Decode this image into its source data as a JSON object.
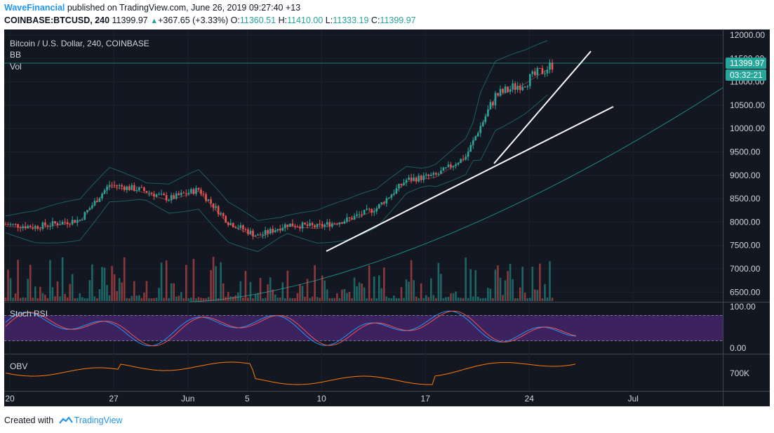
{
  "header": {
    "publisher": "WaveFinancial",
    "published_text": "published on TradingView.com, June 26, 2019 09:27:40 +13",
    "symbol": "COINBASE:BTCUSD, 240",
    "last": "11399.97",
    "change": "+367.65 (+3.33%)",
    "o_label": "O:",
    "o_value": "11360.51",
    "h_label": "H:",
    "h_value": "11410.00",
    "l_label": "L:",
    "l_value": "11333.19",
    "c_label": "C:",
    "c_value": "11399.97"
  },
  "footer": {
    "created_with": "Created with",
    "brand": "TradingView"
  },
  "colors": {
    "background": "#131722",
    "up": "#26a69a",
    "down": "#ef5350",
    "stoch_band": "#3d2260",
    "obv": "#ff7b00",
    "accent": "#2196f3"
  },
  "chart_data": [
    {
      "type": "candlestick",
      "title": "Bitcoin / U.S. Dollar, 240, COINBASE",
      "legend": [
        "BB",
        "Vol"
      ],
      "ylim": [
        6300,
        12050
      ],
      "yticks": [
        "12000.00",
        "11500.00",
        "11000.00",
        "10500.00",
        "10000.00",
        "9500.00",
        "9000.00",
        "8500.00",
        "8000.00",
        "7500.00",
        "7000.00",
        "6500.00"
      ],
      "current_price_label": "11399.97",
      "countdown_label": "03:32:21",
      "xticks": [
        "20",
        "27",
        "Jun",
        "5",
        "10",
        "17",
        "24",
        "Jul"
      ],
      "approx_close_by_day": {
        "x": [
          "May 20",
          "May 22",
          "May 25",
          "May 27",
          "May 29",
          "May 31",
          "Jun 2",
          "Jun 4",
          "Jun 6",
          "Jun 8",
          "Jun 10",
          "Jun 12",
          "Jun 14",
          "Jun 16",
          "Jun 18",
          "Jun 20",
          "Jun 22",
          "Jun 24",
          "Jun 26"
        ],
        "y": [
          7950,
          7900,
          8050,
          8800,
          8700,
          8500,
          8700,
          8000,
          7700,
          7950,
          7900,
          8050,
          8300,
          8900,
          9000,
          9400,
          10700,
          11000,
          11400
        ]
      },
      "grid": true,
      "y_axis_side": "right"
    },
    {
      "type": "line",
      "title": "Stoch RSI",
      "ylim": [
        0,
        100
      ],
      "yticks": [
        "100.00",
        "0.00"
      ],
      "bands": [
        20,
        80
      ]
    },
    {
      "type": "line",
      "title": "OBV",
      "yticks": [
        "700K"
      ]
    }
  ]
}
